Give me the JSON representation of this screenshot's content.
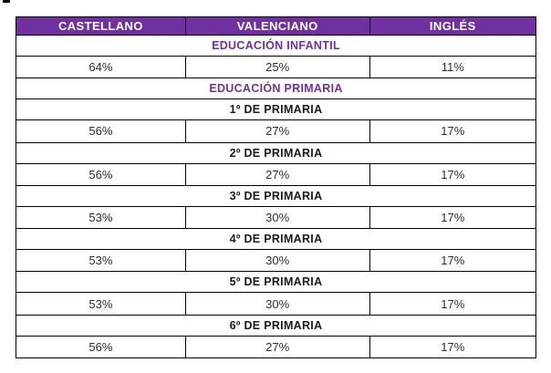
{
  "page": {
    "background": "#ffffff"
  },
  "table": {
    "accent_color": "#7030A0",
    "border_color": "#000000",
    "header_text_color": "#ffffff",
    "columns": [
      "CASTELLANO",
      "VALENCIANO",
      "INGLÉS"
    ],
    "rows": [
      {
        "type": "section",
        "style": "purple",
        "label": "EDUCACIÓN INFANTIL"
      },
      {
        "type": "data",
        "values": [
          "64%",
          "25%",
          "11%"
        ]
      },
      {
        "type": "section",
        "style": "purple",
        "label": "EDUCACIÓN PRIMARIA"
      },
      {
        "type": "section",
        "style": "black",
        "label": "1º DE PRIMARIA"
      },
      {
        "type": "data",
        "values": [
          "56%",
          "27%",
          "17%"
        ]
      },
      {
        "type": "section",
        "style": "black",
        "label": "2º DE PRIMARIA"
      },
      {
        "type": "data",
        "values": [
          "56%",
          "27%",
          "17%"
        ]
      },
      {
        "type": "section",
        "style": "black",
        "label": "3º DE PRIMARIA"
      },
      {
        "type": "data",
        "values": [
          "53%",
          "30%",
          "17%"
        ]
      },
      {
        "type": "section",
        "style": "black",
        "label": "4º DE PRIMARIA"
      },
      {
        "type": "data",
        "values": [
          "53%",
          "30%",
          "17%"
        ]
      },
      {
        "type": "section",
        "style": "black",
        "label": "5º DE PRIMARIA"
      },
      {
        "type": "data",
        "values": [
          "53%",
          "30%",
          "17%"
        ]
      },
      {
        "type": "section",
        "style": "black",
        "label": "6º DE PRIMARIA"
      },
      {
        "type": "data",
        "values": [
          "56%",
          "27%",
          "17%"
        ]
      }
    ]
  },
  "chart_data": {
    "type": "table",
    "title": "",
    "columns": [
      "CASTELLANO",
      "VALENCIANO",
      "INGLÉS"
    ],
    "sections": [
      {
        "label": "EDUCACIÓN INFANTIL",
        "castellano": 64,
        "valenciano": 25,
        "ingles": 11
      },
      {
        "label": "1º DE PRIMARIA",
        "castellano": 56,
        "valenciano": 27,
        "ingles": 17
      },
      {
        "label": "2º DE PRIMARIA",
        "castellano": 56,
        "valenciano": 27,
        "ingles": 17
      },
      {
        "label": "3º DE PRIMARIA",
        "castellano": 53,
        "valenciano": 30,
        "ingles": 17
      },
      {
        "label": "4º DE PRIMARIA",
        "castellano": 53,
        "valenciano": 30,
        "ingles": 17
      },
      {
        "label": "5º DE PRIMARIA",
        "castellano": 53,
        "valenciano": 30,
        "ingles": 17
      },
      {
        "label": "6º DE PRIMARIA",
        "castellano": 56,
        "valenciano": 27,
        "ingles": 17
      }
    ],
    "units": "percent",
    "notes": "EDUCACIÓN PRIMARIA is a group heading above the per-grade rows"
  }
}
